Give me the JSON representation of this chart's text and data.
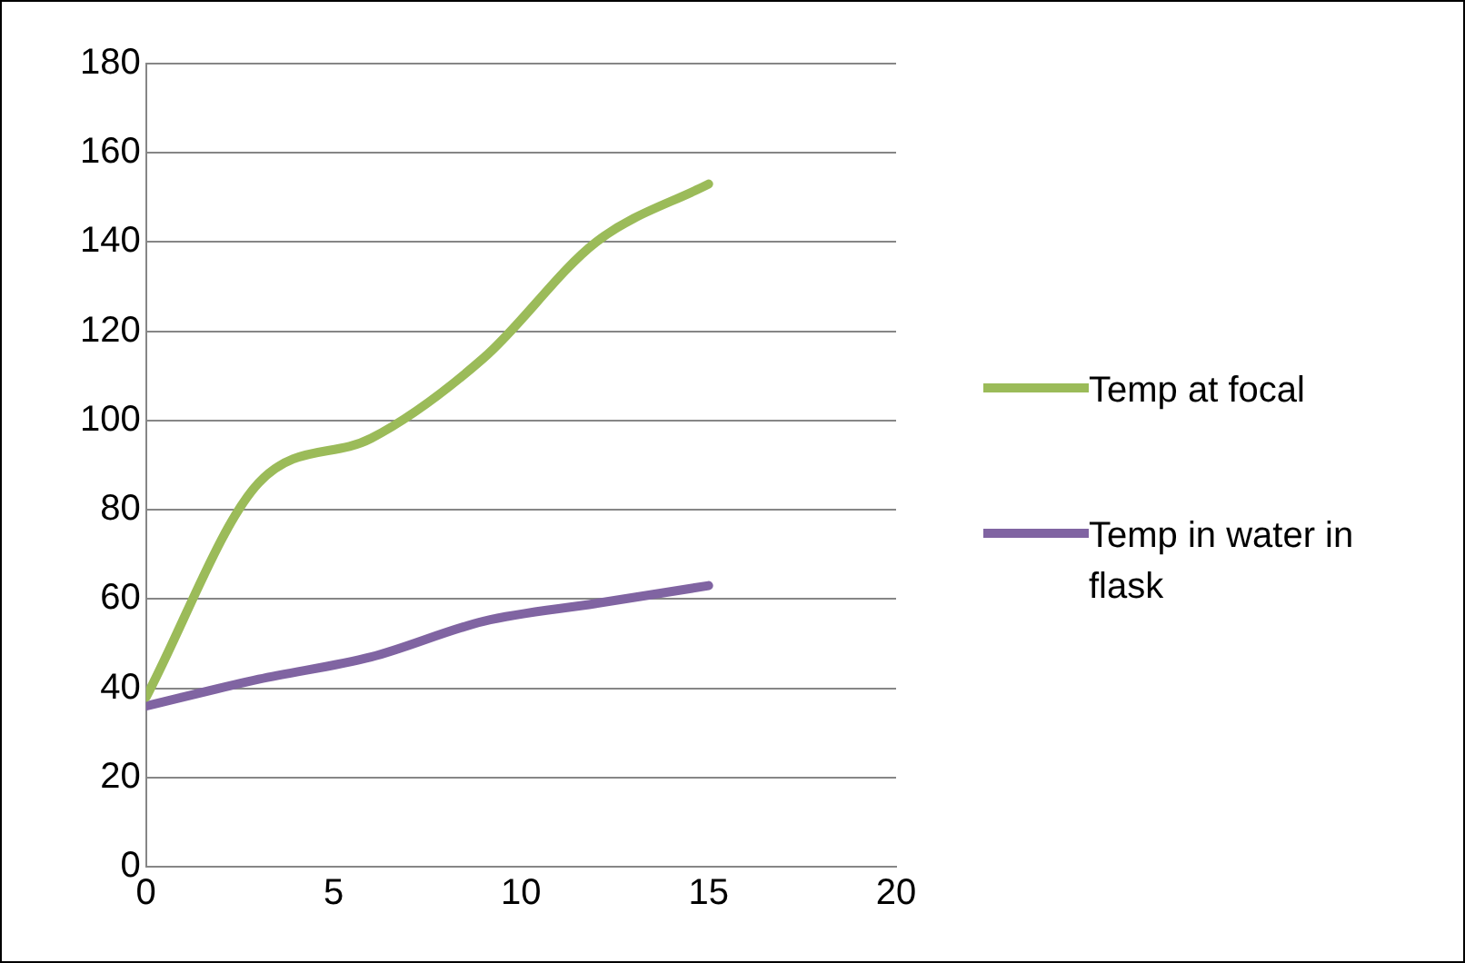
{
  "chart_data": {
    "type": "line",
    "x": [
      0,
      3,
      6,
      9,
      12,
      15
    ],
    "series": [
      {
        "name": "Temp at focal",
        "color": "#9bbb59",
        "values": [
          38,
          86,
          96,
          114,
          140,
          153
        ]
      },
      {
        "name": "Temp in water in flask",
        "color": "#8064a2",
        "values": [
          36,
          42,
          47,
          55,
          59,
          63
        ]
      }
    ],
    "xlim": [
      0,
      20
    ],
    "xticks": [
      0,
      5,
      10,
      15,
      20
    ],
    "ylim": [
      0,
      180
    ],
    "yticks": [
      0,
      20,
      40,
      60,
      80,
      100,
      120,
      140,
      160,
      180
    ],
    "grid": "y",
    "legend": "right",
    "marker": "none",
    "line_style": "solid"
  }
}
